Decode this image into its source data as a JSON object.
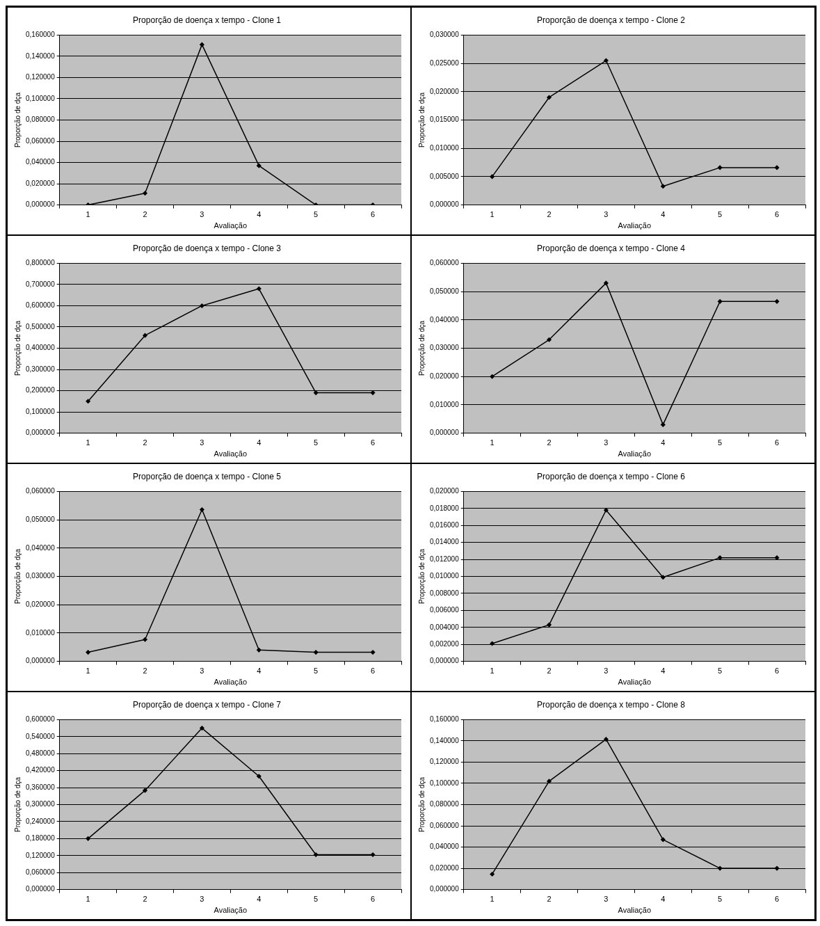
{
  "chart_data": [
    {
      "type": "line",
      "title": "Proporção de doença x tempo - Clone 1",
      "xlabel": "Avaliação",
      "ylabel": "Proporção de dça",
      "categories": [
        "1",
        "2",
        "3",
        "4",
        "5",
        "6"
      ],
      "series": [
        {
          "color": "#000000",
          "values": [
            0,
            0.011,
            0.151,
            0.037,
            0,
            0
          ]
        }
      ],
      "ylim": [
        0,
        0.16
      ],
      "yticks": [
        {
          "value": 0,
          "label": "0,000000"
        },
        {
          "value": 0.02,
          "label": "0,020000"
        },
        {
          "value": 0.04,
          "label": "0,040000"
        },
        {
          "value": 0.06,
          "label": "0,060000"
        },
        {
          "value": 0.08,
          "label": "0,080000"
        },
        {
          "value": 0.1,
          "label": "0,100000"
        },
        {
          "value": 0.12,
          "label": "0,120000"
        },
        {
          "value": 0.14,
          "label": "0,140000"
        },
        {
          "value": 0.16,
          "label": "0,160000"
        }
      ],
      "grid": "y",
      "marker": "diamond"
    },
    {
      "type": "line",
      "title": "Proporção de doença x tempo - Clone 2",
      "xlabel": "Avaliação",
      "ylabel": "Proporção de dça",
      "categories": [
        "1",
        "2",
        "3",
        "4",
        "5",
        "6"
      ],
      "series": [
        {
          "color": "#000000",
          "values": [
            0.005,
            0.019,
            0.0255,
            0.0033,
            0.0066,
            0.0066
          ]
        }
      ],
      "ylim": [
        0,
        0.03
      ],
      "yticks": [
        {
          "value": 0,
          "label": "0,000000"
        },
        {
          "value": 0.005,
          "label": "0,005000"
        },
        {
          "value": 0.01,
          "label": "0,010000"
        },
        {
          "value": 0.015,
          "label": "0,015000"
        },
        {
          "value": 0.02,
          "label": "0,020000"
        },
        {
          "value": 0.025,
          "label": "0,025000"
        },
        {
          "value": 0.03,
          "label": "0,030000"
        }
      ],
      "grid": "y",
      "marker": "diamond"
    },
    {
      "type": "line",
      "title": "Proporção de doença x tempo - Clone 3",
      "xlabel": "Avaliação",
      "ylabel": "Proporção de dça",
      "categories": [
        "1",
        "2",
        "3",
        "4",
        "5",
        "6"
      ],
      "series": [
        {
          "color": "#000000",
          "values": [
            0.15,
            0.46,
            0.6,
            0.68,
            0.19,
            0.19
          ]
        }
      ],
      "ylim": [
        0,
        0.8
      ],
      "yticks": [
        {
          "value": 0,
          "label": "0,000000"
        },
        {
          "value": 0.1,
          "label": "0,100000"
        },
        {
          "value": 0.2,
          "label": "0,200000"
        },
        {
          "value": 0.3,
          "label": "0,300000"
        },
        {
          "value": 0.4,
          "label": "0,400000"
        },
        {
          "value": 0.5,
          "label": "0,500000"
        },
        {
          "value": 0.6,
          "label": "0,600000"
        },
        {
          "value": 0.7,
          "label": "0,700000"
        },
        {
          "value": 0.8,
          "label": "0,800000"
        }
      ],
      "grid": "y",
      "marker": "diamond"
    },
    {
      "type": "line",
      "title": "Proporção de doença x tempo - Clone 4",
      "xlabel": "Avaliação",
      "ylabel": "Proporção de dça",
      "categories": [
        "1",
        "2",
        "3",
        "4",
        "5",
        "6"
      ],
      "series": [
        {
          "color": "#000000",
          "values": [
            0.02,
            0.033,
            0.053,
            0.003,
            0.0465,
            0.0465
          ]
        }
      ],
      "ylim": [
        0,
        0.06
      ],
      "yticks": [
        {
          "value": 0,
          "label": "0,000000"
        },
        {
          "value": 0.01,
          "label": "0,010000"
        },
        {
          "value": 0.02,
          "label": "0,020000"
        },
        {
          "value": 0.03,
          "label": "0,030000"
        },
        {
          "value": 0.04,
          "label": "0,040000"
        },
        {
          "value": 0.05,
          "label": "0,050000"
        },
        {
          "value": 0.06,
          "label": "0,060000"
        }
      ],
      "grid": "y",
      "marker": "diamond"
    },
    {
      "type": "line",
      "title": "Proporção de doença x tempo - Clone 5",
      "xlabel": "Avaliação",
      "ylabel": "Proporção de dça",
      "categories": [
        "1",
        "2",
        "3",
        "4",
        "5",
        "6"
      ],
      "series": [
        {
          "color": "#000000",
          "values": [
            0.0032,
            0.0077,
            0.0536,
            0.004,
            0.0032,
            0.0032
          ]
        }
      ],
      "ylim": [
        0,
        0.06
      ],
      "yticks": [
        {
          "value": 0,
          "label": "0,000000"
        },
        {
          "value": 0.01,
          "label": "0,010000"
        },
        {
          "value": 0.02,
          "label": "0,020000"
        },
        {
          "value": 0.03,
          "label": "0,030000"
        },
        {
          "value": 0.04,
          "label": "0,040000"
        },
        {
          "value": 0.05,
          "label": "0,050000"
        },
        {
          "value": 0.06,
          "label": "0,060000"
        }
      ],
      "grid": "y",
      "marker": "diamond"
    },
    {
      "type": "line",
      "title": "Proporção de doença x tempo - Clone 6",
      "xlabel": "Avaliação",
      "ylabel": "Proporção de dça",
      "categories": [
        "1",
        "2",
        "3",
        "4",
        "5",
        "6"
      ],
      "series": [
        {
          "color": "#000000",
          "values": [
            0.0021,
            0.0043,
            0.0178,
            0.0099,
            0.0122,
            0.0122
          ]
        }
      ],
      "ylim": [
        0,
        0.02
      ],
      "yticks": [
        {
          "value": 0,
          "label": "0,000000"
        },
        {
          "value": 0.002,
          "label": "0,002000"
        },
        {
          "value": 0.004,
          "label": "0,004000"
        },
        {
          "value": 0.006,
          "label": "0,006000"
        },
        {
          "value": 0.008,
          "label": "0,008000"
        },
        {
          "value": 0.01,
          "label": "0,010000"
        },
        {
          "value": 0.012,
          "label": "0,012000"
        },
        {
          "value": 0.014,
          "label": "0,014000"
        },
        {
          "value": 0.016,
          "label": "0,016000"
        },
        {
          "value": 0.018,
          "label": "0,018000"
        },
        {
          "value": 0.02,
          "label": "0,020000"
        }
      ],
      "grid": "y",
      "marker": "diamond"
    },
    {
      "type": "line",
      "title": "Proporção de doença x tempo - Clone 7",
      "xlabel": "Avaliação",
      "ylabel": "Proporção de dça",
      "categories": [
        "1",
        "2",
        "3",
        "4",
        "5",
        "6"
      ],
      "series": [
        {
          "color": "#000000",
          "values": [
            0.18,
            0.35,
            0.57,
            0.4,
            0.123,
            0.123
          ]
        }
      ],
      "ylim": [
        0,
        0.6
      ],
      "yticks": [
        {
          "value": 0,
          "label": "0,000000"
        },
        {
          "value": 0.06,
          "label": "0,060000"
        },
        {
          "value": 0.12,
          "label": "0,120000"
        },
        {
          "value": 0.18,
          "label": "0,180000"
        },
        {
          "value": 0.24,
          "label": "0,240000"
        },
        {
          "value": 0.3,
          "label": "0,300000"
        },
        {
          "value": 0.36,
          "label": "0,360000"
        },
        {
          "value": 0.42,
          "label": "0,420000"
        },
        {
          "value": 0.48,
          "label": "0,480000"
        },
        {
          "value": 0.54,
          "label": "0,540000"
        },
        {
          "value": 0.6,
          "label": "0,600000"
        }
      ],
      "grid": "y",
      "marker": "diamond"
    },
    {
      "type": "line",
      "title": "Proporção de doença x tempo - Clone 8",
      "xlabel": "Avaliação",
      "ylabel": "Proporção de dça",
      "categories": [
        "1",
        "2",
        "3",
        "4",
        "5",
        "6"
      ],
      "series": [
        {
          "color": "#000000",
          "values": [
            0.0145,
            0.102,
            0.1415,
            0.047,
            0.02,
            0.02
          ]
        }
      ],
      "ylim": [
        0,
        0.16
      ],
      "yticks": [
        {
          "value": 0,
          "label": "0,000000"
        },
        {
          "value": 0.02,
          "label": "0,020000"
        },
        {
          "value": 0.04,
          "label": "0,040000"
        },
        {
          "value": 0.06,
          "label": "0,060000"
        },
        {
          "value": 0.08,
          "label": "0,080000"
        },
        {
          "value": 0.1,
          "label": "0,100000"
        },
        {
          "value": 0.12,
          "label": "0,120000"
        },
        {
          "value": 0.14,
          "label": "0,140000"
        },
        {
          "value": 0.16,
          "label": "0,160000"
        }
      ],
      "grid": "y",
      "marker": "diamond"
    }
  ]
}
